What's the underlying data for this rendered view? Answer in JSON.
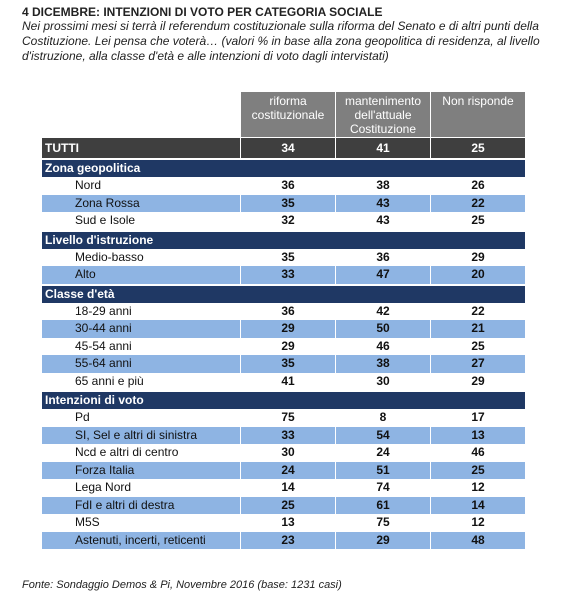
{
  "header": {
    "title": "4 DICEMBRE: INTENZIONI DI VOTO PER CATEGORIA  SOCIALE",
    "subtitle": "Nei prossimi mesi si terrà il referendum costituzionale sulla riforma del Senato e di altri punti della Costituzione. Lei pensa che voterà… (valori % in base alla zona geopolitica di residenza, al livello d'istruzione, alla classe d'età e alle intenzioni di voto dagli intervistati)"
  },
  "table": {
    "columns": [
      "riforma costituzionale",
      "mantenimento dell'attuale Costituzione",
      "Non risponde"
    ],
    "total": {
      "label": "TUTTI",
      "values": [
        34,
        41,
        25
      ]
    },
    "groups": [
      {
        "name": "Zona geopolitica",
        "rows": [
          {
            "label": "Nord",
            "values": [
              36,
              38,
              26
            ]
          },
          {
            "label": "Zona Rossa",
            "values": [
              35,
              43,
              22
            ]
          },
          {
            "label": "Sud e Isole",
            "values": [
              32,
              43,
              25
            ]
          }
        ]
      },
      {
        "name": "Livello d'istruzione",
        "rows": [
          {
            "label": "Medio-basso",
            "values": [
              35,
              36,
              29
            ]
          },
          {
            "label": "Alto",
            "values": [
              33,
              47,
              20
            ]
          }
        ]
      },
      {
        "name": "Classe d'età",
        "rows": [
          {
            "label": "18-29 anni",
            "values": [
              36,
              42,
              22
            ]
          },
          {
            "label": "30-44 anni",
            "values": [
              29,
              50,
              21
            ]
          },
          {
            "label": "45-54 anni",
            "values": [
              29,
              46,
              25
            ]
          },
          {
            "label": "55-64 anni",
            "values": [
              35,
              38,
              27
            ]
          },
          {
            "label": "65 anni e più",
            "values": [
              41,
              30,
              29
            ]
          }
        ]
      },
      {
        "name": "Intenzioni di voto",
        "rows": [
          {
            "label": "Pd",
            "values": [
              75,
              8,
              17
            ]
          },
          {
            "label": "SI, Sel e altri di sinistra",
            "values": [
              33,
              54,
              13
            ]
          },
          {
            "label": "Ncd e altri di centro",
            "values": [
              30,
              24,
              46
            ]
          },
          {
            "label": "Forza Italia",
            "values": [
              24,
              51,
              25
            ]
          },
          {
            "label": "Lega Nord",
            "values": [
              14,
              74,
              12
            ]
          },
          {
            "label": "FdI e altri di destra",
            "values": [
              25,
              61,
              14
            ]
          },
          {
            "label": "M5S",
            "values": [
              13,
              75,
              12
            ]
          },
          {
            "label": "Astenuti, incerti, reticenti",
            "values": [
              23,
              29,
              48
            ]
          }
        ]
      }
    ]
  },
  "source": "Fonte: Sondaggio Demos & Pi, Novembre 2016 (base: 1231 casi)"
}
